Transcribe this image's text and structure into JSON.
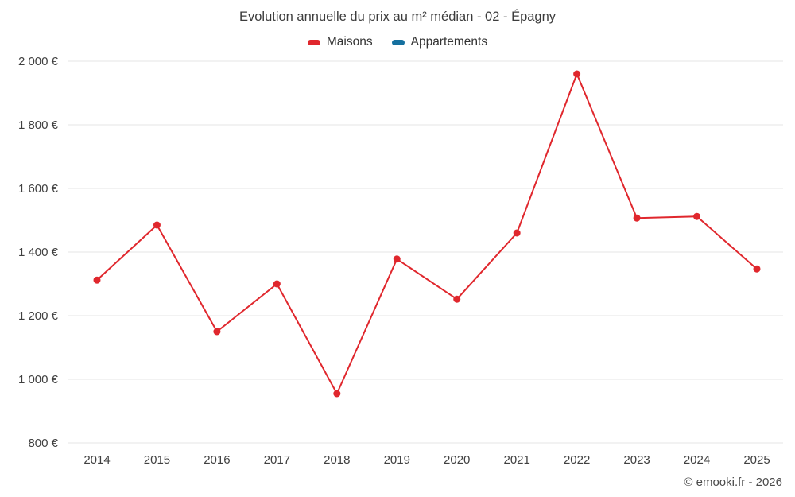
{
  "header": {
    "title": "Evolution annuelle du prix au m² médian - 02 - Épagny"
  },
  "footer": {
    "copyright": "© emooki.fr - 2026"
  },
  "chart_data": {
    "type": "line",
    "title": "Evolution annuelle du prix au m² médian - 02 - Épagny",
    "xlabel": "",
    "ylabel": "",
    "categories": [
      "2014",
      "2015",
      "2016",
      "2017",
      "2018",
      "2019",
      "2020",
      "2021",
      "2022",
      "2023",
      "2024",
      "2025"
    ],
    "series": [
      {
        "name": "Maisons",
        "color": "#e0272d",
        "values": [
          1312,
          1485,
          1150,
          1300,
          955,
          1378,
          1252,
          1460,
          1960,
          1507,
          1512,
          1347
        ]
      },
      {
        "name": "Appartements",
        "color": "#15709f",
        "values": []
      }
    ],
    "ylim": [
      800,
      2000
    ],
    "y_ticks": [
      {
        "value": 800,
        "label": "800 €"
      },
      {
        "value": 1000,
        "label": "1 000 €"
      },
      {
        "value": 1200,
        "label": "1 200 €"
      },
      {
        "value": 1400,
        "label": "1 400 €"
      },
      {
        "value": 1600,
        "label": "1 600 €"
      },
      {
        "value": 1800,
        "label": "1 800 €"
      },
      {
        "value": 2000,
        "label": "2 000 €"
      }
    ],
    "grid": "horizontal",
    "legend_position": "top"
  }
}
